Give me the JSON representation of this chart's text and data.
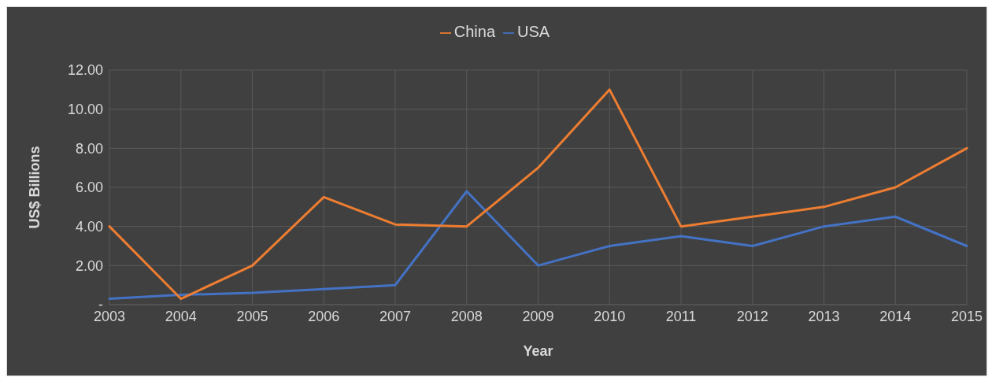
{
  "chart_data": {
    "type": "line",
    "xlabel": "Year",
    "ylabel": "US$ Billions",
    "categories": [
      "2003",
      "2004",
      "2005",
      "2006",
      "2007",
      "2008",
      "2009",
      "2010",
      "2011",
      "2012",
      "2013",
      "2014",
      "2015"
    ],
    "series": [
      {
        "name": "USA",
        "color": "#4472c4",
        "values": [
          0.3,
          0.5,
          0.6,
          0.8,
          1.0,
          5.8,
          2.0,
          3.0,
          3.5,
          3.0,
          4.0,
          4.5,
          3.0
        ]
      },
      {
        "name": "China",
        "color": "#ed7d31",
        "values": [
          4.0,
          0.3,
          2.0,
          5.5,
          4.1,
          4.0,
          7.0,
          11.0,
          4.0,
          4.5,
          5.0,
          6.0,
          8.0
        ]
      }
    ],
    "ylim": [
      0,
      12
    ],
    "yticks": [
      {
        "value": 0,
        "label": "-"
      },
      {
        "value": 2,
        "label": "2.00"
      },
      {
        "value": 4,
        "label": "4.00"
      },
      {
        "value": 6,
        "label": "6.00"
      },
      {
        "value": 8,
        "label": "8.00"
      },
      {
        "value": 10,
        "label": "10.00"
      },
      {
        "value": 12,
        "label": "12.00"
      }
    ],
    "grid": true,
    "legend": "top",
    "marker": "none",
    "line_style": "solid"
  }
}
